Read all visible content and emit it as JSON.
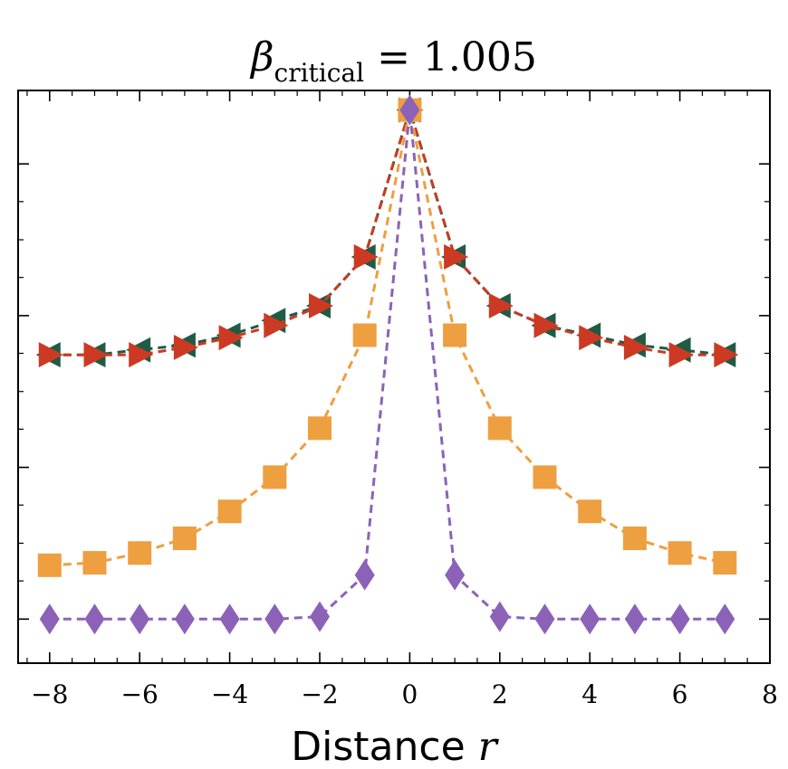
{
  "chart_data": {
    "type": "line",
    "title": {
      "symbol": "β",
      "subscript": "critical",
      "relation": "= 1.005"
    },
    "xlabel": {
      "text": "Distance",
      "variable": "r"
    },
    "ylabel": "",
    "xlim": [
      -8.7,
      8.0
    ],
    "ylim": [
      -0.09,
      1.08
    ],
    "xticks": [
      -8,
      -6,
      -4,
      -2,
      0,
      2,
      4,
      6,
      8
    ],
    "xtick_labels": [
      "−8",
      "−6",
      "−4",
      "−2",
      "0",
      "2",
      "4",
      "6",
      "8"
    ],
    "y_major_ticks": [
      0,
      0.31,
      0.62,
      0.93
    ],
    "y_minor_ticks": [
      0.078,
      0.155,
      0.233,
      0.388,
      0.465,
      0.543,
      0.698,
      0.775,
      0.853
    ],
    "x_minor_step": 0.5,
    "grid": false,
    "legend": "none",
    "x": [
      -8,
      -7,
      -6,
      -5,
      -4,
      -3,
      -2,
      -1,
      0,
      1,
      2,
      3,
      4,
      5,
      6,
      7
    ],
    "series": [
      {
        "marker": "triangle-left",
        "color": "#1f5b45",
        "line": "dashed",
        "values": [
          0.54,
          0.54,
          0.55,
          0.56,
          0.58,
          0.61,
          0.64,
          0.74,
          1.04,
          0.74,
          0.64,
          0.6,
          0.58,
          0.56,
          0.55,
          0.54
        ]
      },
      {
        "marker": "triangle-right",
        "color": "#cc3a24",
        "line": "dashed",
        "values": [
          0.54,
          0.54,
          0.54,
          0.555,
          0.575,
          0.6,
          0.64,
          0.74,
          1.04,
          0.74,
          0.64,
          0.6,
          0.575,
          0.555,
          0.54,
          0.54
        ]
      },
      {
        "marker": "square",
        "color": "#ee9f3f",
        "line": "dashed",
        "values": [
          0.11,
          0.115,
          0.135,
          0.165,
          0.22,
          0.29,
          0.39,
          0.58,
          1.04,
          0.58,
          0.39,
          0.29,
          0.22,
          0.165,
          0.135,
          0.115
        ]
      },
      {
        "marker": "diamond",
        "color": "#8c62b8",
        "line": "dashed",
        "values": [
          0.0,
          0.0,
          0.0,
          0.0,
          0.0,
          0.0,
          0.005,
          0.09,
          1.04,
          0.09,
          0.005,
          0.0,
          0.0,
          0.0,
          0.0,
          0.0
        ]
      }
    ]
  }
}
